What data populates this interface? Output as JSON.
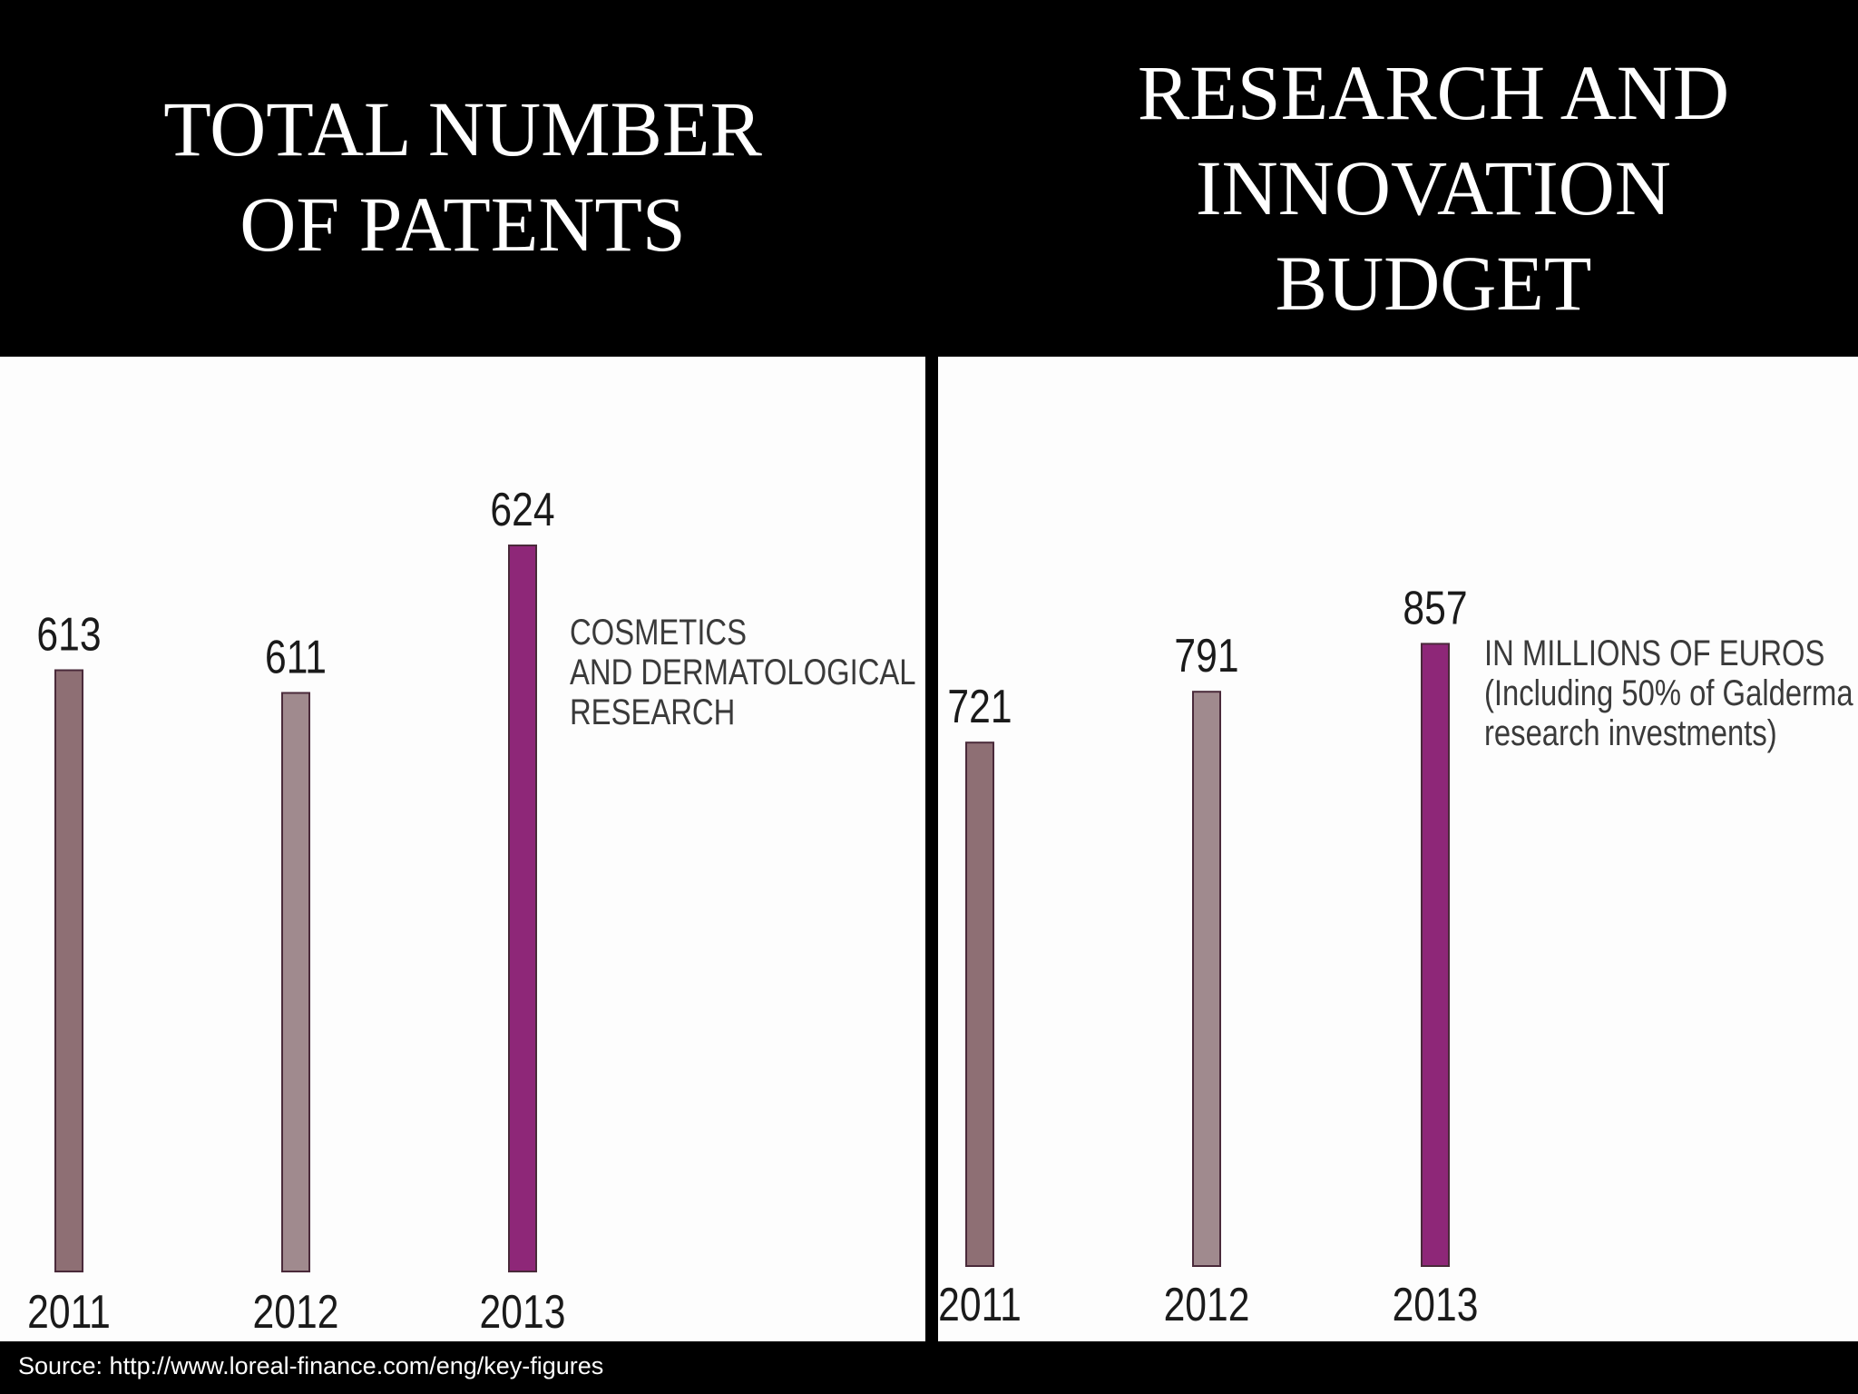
{
  "chart_data": [
    {
      "type": "bar",
      "title": "TOTAL NUMBER\nOF PATENTS",
      "categories": [
        "2011",
        "2012",
        "2013"
      ],
      "values": [
        613,
        611,
        624
      ],
      "annotation": "COSMETICS\nAND DERMATOLOGICAL\nRESEARCH",
      "colors": [
        "#8e6f74",
        "#a08a8e",
        "#8e2778"
      ]
    },
    {
      "type": "bar",
      "title": "RESEARCH AND\nINNOVATION\nBUDGET",
      "categories": [
        "2011",
        "2012",
        "2013"
      ],
      "values": [
        721,
        791,
        857
      ],
      "annotation": "IN MILLIONS OF EUROS\n(Including 50% of Galderma\nresearch investments)",
      "colors": [
        "#8e6f74",
        "#a08a8e",
        "#8e2778"
      ]
    }
  ],
  "source": "Source: http://www.loreal-finance.com/eng/key-figures"
}
